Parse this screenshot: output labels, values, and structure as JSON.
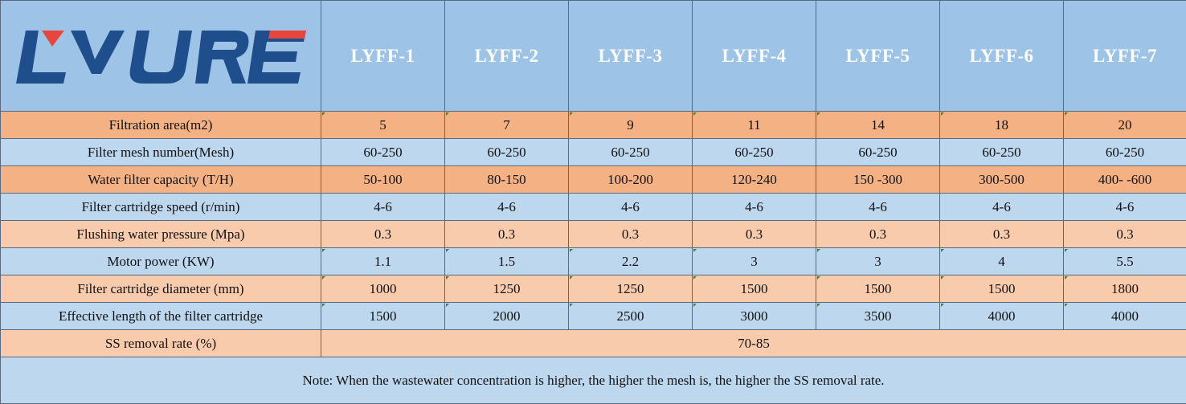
{
  "logo": {
    "text": "LYURE",
    "colors": {
      "blue": "#1f4e8c",
      "red": "#e8453c"
    }
  },
  "models": [
    "LYFF-1",
    "LYFF-2",
    "LYFF-3",
    "LYFF-4",
    "LYFF-5",
    "LYFF-6",
    "LYFF-7"
  ],
  "rows": [
    {
      "label": "Filtration area(m2)",
      "values": [
        "5",
        "7",
        "9",
        "11",
        "14",
        "18",
        "20"
      ]
    },
    {
      "label": "Filter mesh number(Mesh)",
      "values": [
        "60-250",
        "60-250",
        "60-250",
        "60-250",
        "60-250",
        "60-250",
        "60-250"
      ]
    },
    {
      "label": "Water filter capacity (T/H)",
      "values": [
        "50-100",
        "80-150",
        "100-200",
        "120-240",
        "150 -300",
        "300-500",
        "400- -600"
      ]
    },
    {
      "label": "Filter cartridge speed (r/min)",
      "values": [
        "4-6",
        "4-6",
        "4-6",
        "4-6",
        "4-6",
        "4-6",
        "4-6"
      ]
    },
    {
      "label": "Flushing water pressure (Mpa)",
      "values": [
        "0.3",
        "0.3",
        "0.3",
        "0.3",
        "0.3",
        "0.3",
        "0.3"
      ]
    },
    {
      "label": "Motor power (KW)",
      "values": [
        "1.1",
        "1.5",
        "2.2",
        "3",
        "3",
        "4",
        "5.5"
      ]
    },
    {
      "label": "Filter cartridge diameter (mm)",
      "values": [
        "1000",
        "1250",
        "1250",
        "1500",
        "1500",
        "1500",
        "1800"
      ]
    },
    {
      "label": "Effective length of the filter cartridge",
      "values": [
        "1500",
        "2000",
        "2500",
        "3000",
        "3500",
        "4000",
        "4000"
      ]
    }
  ],
  "ss_row": {
    "label": "SS removal rate (%)",
    "value": "70-85"
  },
  "note": "Note: When the wastewater concentration is higher, the higher the mesh is, the higher the SS removal rate.",
  "colors": {
    "header_bg": "#9dc3e6",
    "orange_dark": "#f4b183",
    "blue": "#bdd7ee",
    "orange_light": "#f8cbad"
  }
}
